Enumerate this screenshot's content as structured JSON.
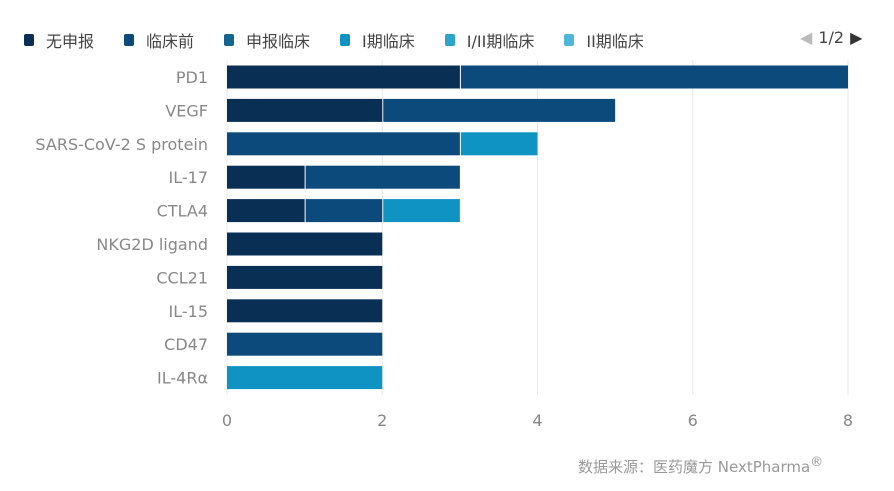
{
  "legend": {
    "items": [
      "无申报",
      "临床前",
      "申报临床",
      "I期临床",
      "I/II期临床",
      "II期临床"
    ],
    "pager": "1/2"
  },
  "colors": [
    "#0a2f55",
    "#0c4a7c",
    "#156592",
    "#0f93c2",
    "#2ea4c9",
    "#4db6da"
  ],
  "chart_data": {
    "type": "bar",
    "orientation": "horizontal",
    "stacked": true,
    "categories": [
      "PD1",
      "VEGF",
      "SARS-CoV-2 S protein",
      "IL-17",
      "CTLA4",
      "NKG2D ligand",
      "CCL21",
      "IL-15",
      "CD47",
      "IL-4Rα"
    ],
    "series": [
      {
        "name": "无申报",
        "values": [
          3,
          2,
          0,
          1,
          1,
          2,
          2,
          2,
          0,
          0
        ]
      },
      {
        "name": "临床前",
        "values": [
          5,
          3,
          3,
          2,
          1,
          0,
          0,
          0,
          2,
          0
        ]
      },
      {
        "name": "申报临床",
        "values": [
          0,
          0,
          0,
          0,
          0,
          0,
          0,
          0,
          0,
          0
        ]
      },
      {
        "name": "I期临床",
        "values": [
          0,
          0,
          1,
          0,
          1,
          0,
          0,
          0,
          0,
          2
        ]
      },
      {
        "name": "I/II期临床",
        "values": [
          0,
          0,
          0,
          0,
          0,
          0,
          0,
          0,
          0,
          0
        ]
      },
      {
        "name": "II期临床",
        "values": [
          0,
          0,
          0,
          0,
          0,
          0,
          0,
          0,
          0,
          0
        ]
      }
    ],
    "xlim": [
      0,
      8
    ],
    "xticks": [
      0,
      2,
      4,
      6,
      8
    ],
    "grid": true,
    "legend_position": "top"
  },
  "source": {
    "text": "数据来源：医药魔方 NextPharma",
    "mark": "®"
  }
}
